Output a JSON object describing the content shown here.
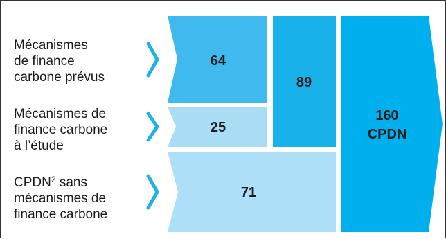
{
  "rows": [
    {
      "lines": [
        "Mécanismes",
        "de finance",
        "carbone prévus"
      ],
      "value": "64"
    },
    {
      "lines": [
        "Mécanismes de",
        "finance carbone",
        "à l’étude"
      ],
      "value": "25"
    },
    {
      "lines": [
        "CPDN",
        "sans",
        "mécanismes de",
        "finance carbone"
      ],
      "footnote": "2",
      "value": "71"
    }
  ],
  "subtotal": {
    "value": "89"
  },
  "total": {
    "value": "160",
    "label": "CPDN"
  },
  "colors": {
    "mid_blue": "#3fb9ee",
    "light_blue": "#a9dcf5",
    "pale_blue": "#ade0f8",
    "strong_blue": "#19b1ea",
    "total_blue": "#00b0ee",
    "chevron": "#21b1ea",
    "border": "#333333"
  }
}
